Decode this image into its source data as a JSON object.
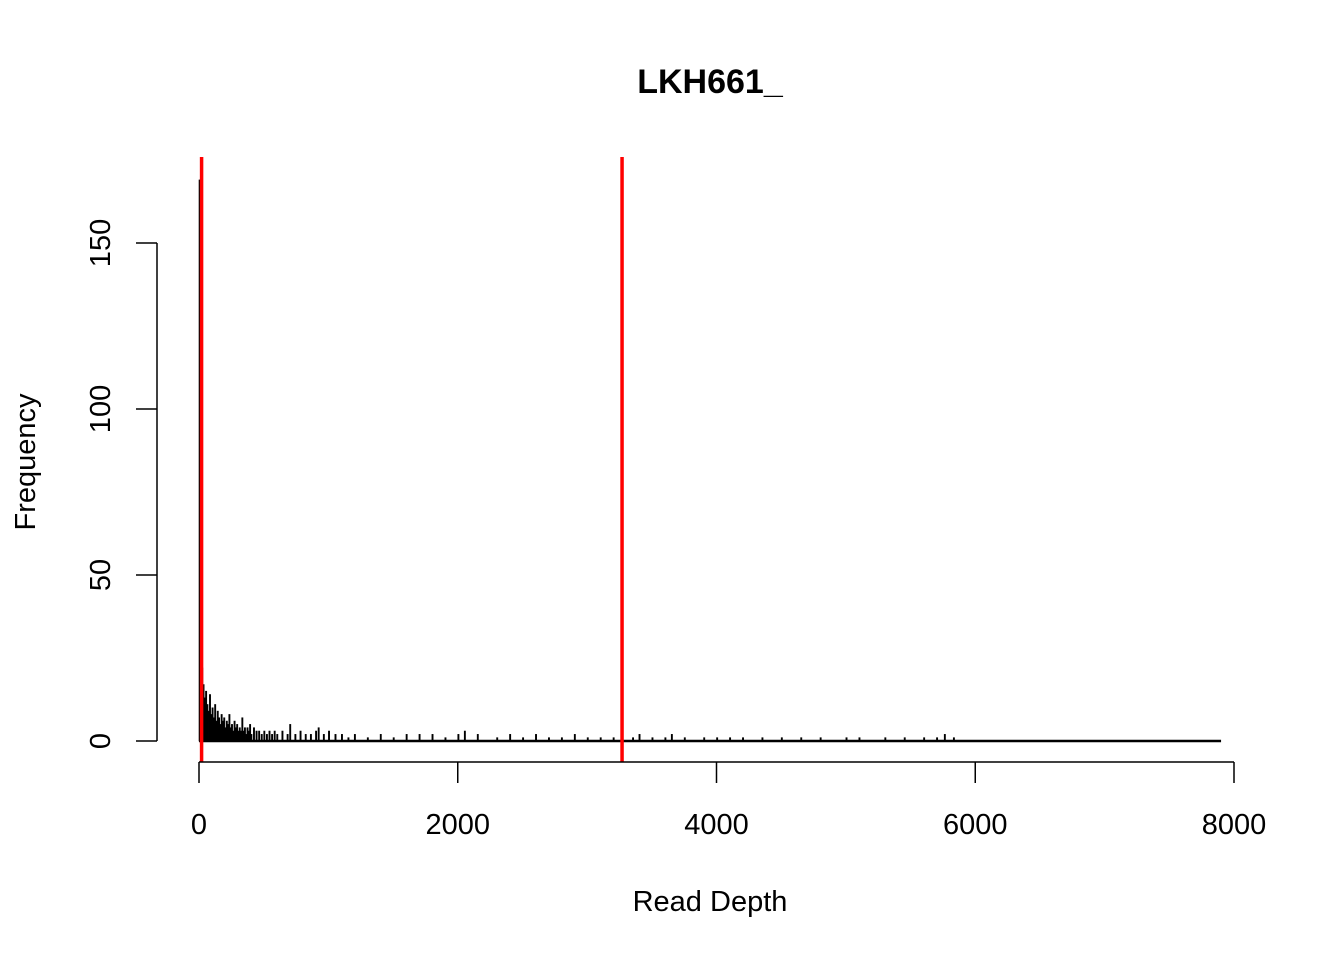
{
  "chart_data": {
    "type": "bar",
    "title": "LKH661_",
    "xlabel": "Read Depth",
    "ylabel": "Frequency",
    "xlim": [
      0,
      8000
    ],
    "ylim": [
      0,
      170
    ],
    "x_ticks": [
      "0",
      "2000",
      "4000",
      "6000",
      "8000"
    ],
    "y_ticks": [
      "0",
      "50",
      "100",
      "150"
    ],
    "grid": false,
    "bin_width": 10,
    "series": [
      {
        "bins": [
          {
            "x": 0,
            "y": 169
          },
          {
            "x": 10,
            "y": 34
          },
          {
            "x": 20,
            "y": 22
          },
          {
            "x": 30,
            "y": 17
          },
          {
            "x": 40,
            "y": 13
          },
          {
            "x": 50,
            "y": 15
          },
          {
            "x": 60,
            "y": 11
          },
          {
            "x": 70,
            "y": 9
          },
          {
            "x": 80,
            "y": 14
          },
          {
            "x": 90,
            "y": 8
          },
          {
            "x": 100,
            "y": 10
          },
          {
            "x": 110,
            "y": 7
          },
          {
            "x": 120,
            "y": 11
          },
          {
            "x": 130,
            "y": 6
          },
          {
            "x": 140,
            "y": 9
          },
          {
            "x": 150,
            "y": 7
          },
          {
            "x": 160,
            "y": 5
          },
          {
            "x": 170,
            "y": 8
          },
          {
            "x": 180,
            "y": 6
          },
          {
            "x": 190,
            "y": 7
          },
          {
            "x": 200,
            "y": 4
          },
          {
            "x": 210,
            "y": 6
          },
          {
            "x": 220,
            "y": 5
          },
          {
            "x": 230,
            "y": 8
          },
          {
            "x": 240,
            "y": 4
          },
          {
            "x": 250,
            "y": 5
          },
          {
            "x": 260,
            "y": 3
          },
          {
            "x": 270,
            "y": 6
          },
          {
            "x": 280,
            "y": 4
          },
          {
            "x": 290,
            "y": 5
          },
          {
            "x": 300,
            "y": 3
          },
          {
            "x": 310,
            "y": 4
          },
          {
            "x": 320,
            "y": 3
          },
          {
            "x": 330,
            "y": 7
          },
          {
            "x": 340,
            "y": 3
          },
          {
            "x": 350,
            "y": 4
          },
          {
            "x": 360,
            "y": 2
          },
          {
            "x": 370,
            "y": 4
          },
          {
            "x": 380,
            "y": 3
          },
          {
            "x": 390,
            "y": 5
          },
          {
            "x": 400,
            "y": 2
          },
          {
            "x": 420,
            "y": 4
          },
          {
            "x": 440,
            "y": 3
          },
          {
            "x": 460,
            "y": 3
          },
          {
            "x": 480,
            "y": 2
          },
          {
            "x": 500,
            "y": 3
          },
          {
            "x": 520,
            "y": 2
          },
          {
            "x": 540,
            "y": 3
          },
          {
            "x": 560,
            "y": 2
          },
          {
            "x": 580,
            "y": 3
          },
          {
            "x": 600,
            "y": 2
          },
          {
            "x": 640,
            "y": 3
          },
          {
            "x": 680,
            "y": 2
          },
          {
            "x": 700,
            "y": 5
          },
          {
            "x": 740,
            "y": 2
          },
          {
            "x": 780,
            "y": 3
          },
          {
            "x": 820,
            "y": 2
          },
          {
            "x": 860,
            "y": 2
          },
          {
            "x": 900,
            "y": 3
          },
          {
            "x": 920,
            "y": 4
          },
          {
            "x": 960,
            "y": 2
          },
          {
            "x": 1000,
            "y": 3
          },
          {
            "x": 1050,
            "y": 2
          },
          {
            "x": 1100,
            "y": 2
          },
          {
            "x": 1150,
            "y": 1
          },
          {
            "x": 1200,
            "y": 2
          },
          {
            "x": 1300,
            "y": 1
          },
          {
            "x": 1400,
            "y": 2
          },
          {
            "x": 1500,
            "y": 1
          },
          {
            "x": 1600,
            "y": 2
          },
          {
            "x": 1700,
            "y": 2
          },
          {
            "x": 1800,
            "y": 2
          },
          {
            "x": 1900,
            "y": 1
          },
          {
            "x": 2000,
            "y": 2
          },
          {
            "x": 2050,
            "y": 3
          },
          {
            "x": 2150,
            "y": 2
          },
          {
            "x": 2300,
            "y": 1
          },
          {
            "x": 2400,
            "y": 2
          },
          {
            "x": 2500,
            "y": 1
          },
          {
            "x": 2600,
            "y": 2
          },
          {
            "x": 2700,
            "y": 1
          },
          {
            "x": 2800,
            "y": 1
          },
          {
            "x": 2900,
            "y": 2
          },
          {
            "x": 3000,
            "y": 1
          },
          {
            "x": 3100,
            "y": 1
          },
          {
            "x": 3200,
            "y": 1
          },
          {
            "x": 3350,
            "y": 1
          },
          {
            "x": 3400,
            "y": 2
          },
          {
            "x": 3500,
            "y": 1
          },
          {
            "x": 3600,
            "y": 1
          },
          {
            "x": 3650,
            "y": 2
          },
          {
            "x": 3750,
            "y": 1
          },
          {
            "x": 3900,
            "y": 1
          },
          {
            "x": 4000,
            "y": 1
          },
          {
            "x": 4100,
            "y": 1
          },
          {
            "x": 4200,
            "y": 1
          },
          {
            "x": 4350,
            "y": 1
          },
          {
            "x": 4500,
            "y": 1
          },
          {
            "x": 4650,
            "y": 1
          },
          {
            "x": 4800,
            "y": 1
          },
          {
            "x": 5000,
            "y": 1
          },
          {
            "x": 5100,
            "y": 1
          },
          {
            "x": 5300,
            "y": 1
          },
          {
            "x": 5450,
            "y": 1
          },
          {
            "x": 5600,
            "y": 1
          },
          {
            "x": 5700,
            "y": 1
          },
          {
            "x": 5760,
            "y": 2
          },
          {
            "x": 5830,
            "y": 1
          }
        ],
        "baseline_end": 7900,
        "color": "#000000"
      }
    ],
    "vlines": [
      {
        "x": 20,
        "color": "#ff0000"
      },
      {
        "x": 3270,
        "color": "#ff0000"
      }
    ]
  }
}
